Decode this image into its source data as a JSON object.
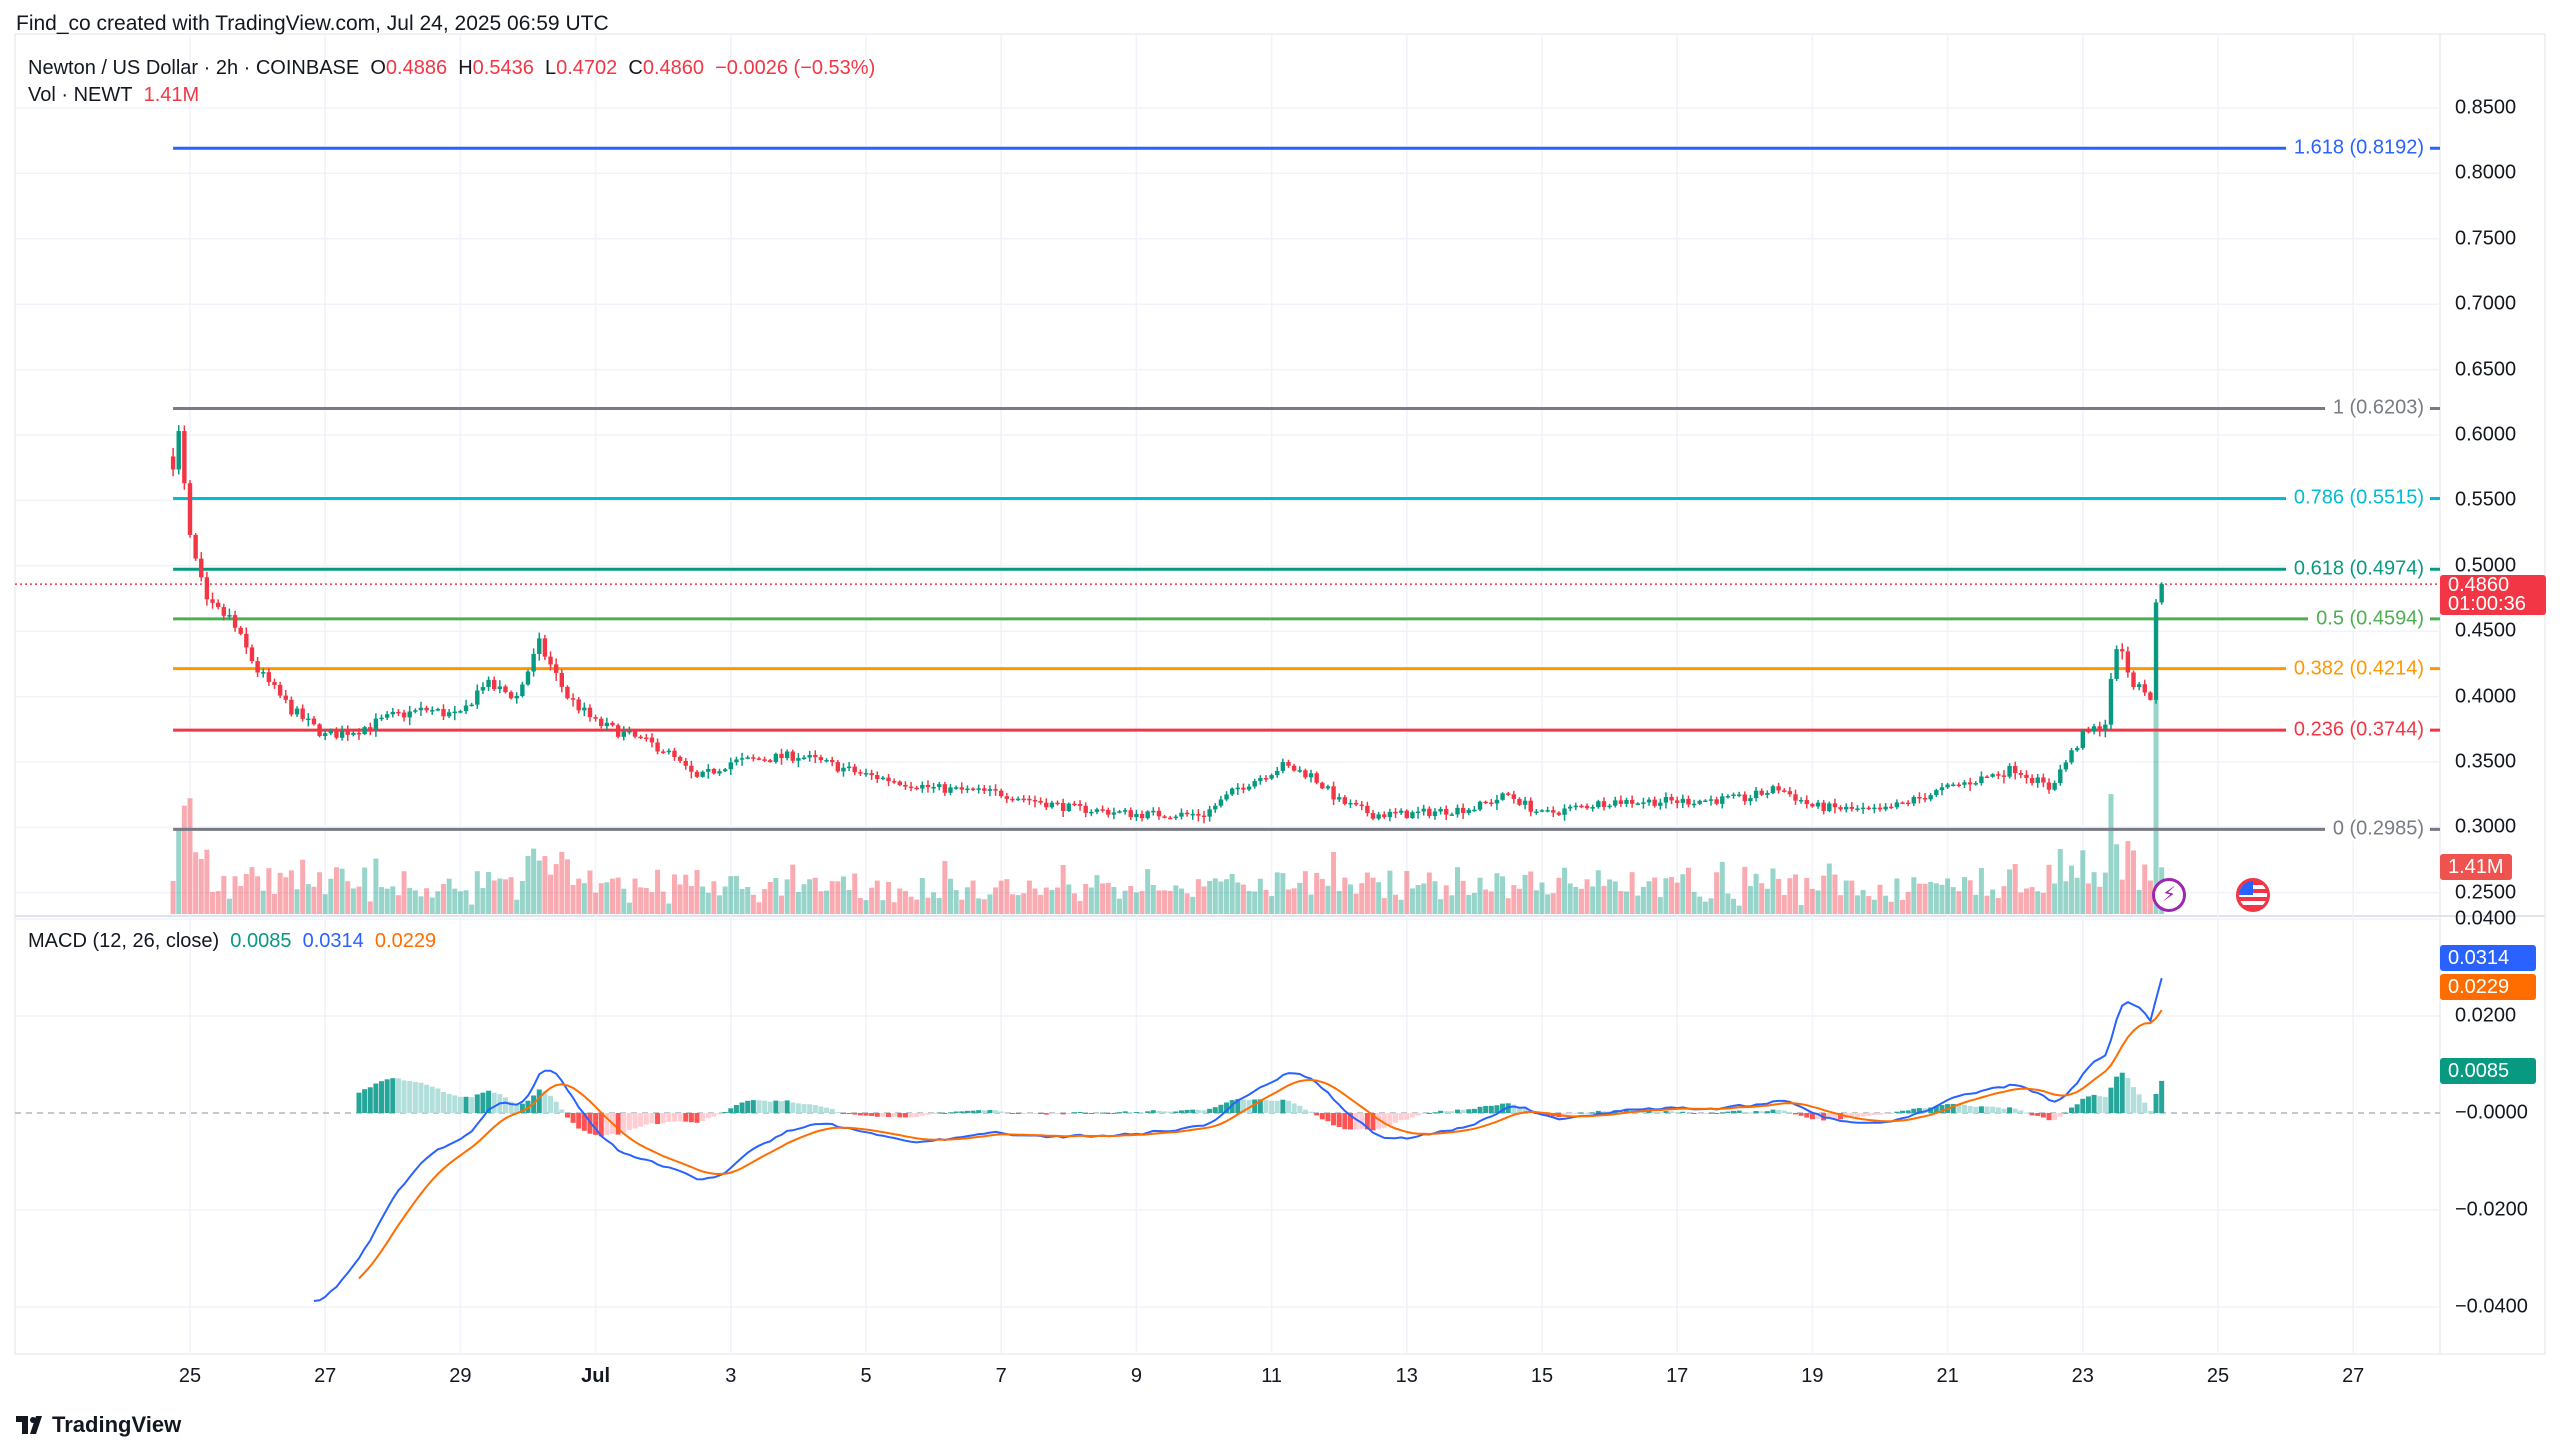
{
  "header": {
    "created": "Find_co created with TradingView.com, Jul 24, 2025 06:59 UTC"
  },
  "legend": {
    "symbol": "Newton / US Dollar · 2h · COINBASE",
    "o_label": "O",
    "o": "0.4886",
    "h_label": "H",
    "h": "0.5436",
    "l_label": "L",
    "l": "0.4702",
    "c_label": "C",
    "c": "0.4860",
    "change": "−0.0026 (−0.53%)",
    "vol_label": "Vol · NEWT",
    "vol": "1.41M"
  },
  "macd_legend": {
    "label": "MACD (12, 26, close)",
    "hist": "0.0085",
    "macd": "0.0314",
    "signal": "0.0229"
  },
  "price_box": {
    "price": "0.4860",
    "countdown": "01:00:36"
  },
  "volume_box": "1.41M",
  "macd_boxes": {
    "macd": "0.0314",
    "signal": "0.0229",
    "hist": "0.0085"
  },
  "brand": "TradingView",
  "colors": {
    "up": "#089981",
    "down": "#F23645",
    "macd": "#2962FF",
    "signal": "#FF6D00",
    "grid": "#F0F3FA"
  },
  "icons": [
    "lightning-event-icon",
    "us-flag-event-icon",
    "tradingview-logo-icon"
  ],
  "chart_data": {
    "type": "candlestick",
    "interval": "2h",
    "price_axis": {
      "ticks": [
        "0.8500",
        "0.8000",
        "0.7500",
        "0.7000",
        "0.6500",
        "0.6000",
        "0.5500",
        "0.5000",
        "0.4500",
        "0.4000",
        "0.3500",
        "0.3000",
        "0.2500"
      ],
      "range": [
        0.24,
        0.86
      ]
    },
    "macd_axis": {
      "ticks": [
        "0.0400",
        "0.0200",
        "−0.0000",
        "−0.0200",
        "−0.0400"
      ],
      "range": [
        -0.045,
        0.04
      ]
    },
    "x_ticks": [
      {
        "label": "25",
        "date": "2025-06-25"
      },
      {
        "label": "27",
        "date": "2025-06-27"
      },
      {
        "label": "29",
        "date": "2025-06-29"
      },
      {
        "label": "Jul",
        "date": "2025-07-01"
      },
      {
        "label": "3",
        "date": "2025-07-03"
      },
      {
        "label": "5",
        "date": "2025-07-05"
      },
      {
        "label": "7",
        "date": "2025-07-07"
      },
      {
        "label": "9",
        "date": "2025-07-09"
      },
      {
        "label": "11",
        "date": "2025-07-11"
      },
      {
        "label": "13",
        "date": "2025-07-13"
      },
      {
        "label": "15",
        "date": "2025-07-15"
      },
      {
        "label": "17",
        "date": "2025-07-17"
      },
      {
        "label": "19",
        "date": "2025-07-19"
      },
      {
        "label": "21",
        "date": "2025-07-21"
      },
      {
        "label": "23",
        "date": "2025-07-23"
      },
      {
        "label": "25",
        "date": "2025-07-25"
      },
      {
        "label": "27",
        "date": "2025-07-27"
      }
    ],
    "fib_levels": [
      {
        "label": "1.618 (0.8192)",
        "price": 0.8192,
        "color": "#2962FF"
      },
      {
        "label": "1 (0.6203)",
        "price": 0.6203,
        "color": "#787B86"
      },
      {
        "label": "0.786 (0.5515)",
        "price": 0.5515,
        "color": "#00BCD4"
      },
      {
        "label": "0.618 (0.4974)",
        "price": 0.4974,
        "color": "#089981"
      },
      {
        "label": "0.5 (0.4594)",
        "price": 0.4594,
        "color": "#4CAF50"
      },
      {
        "label": "0.382 (0.4214)",
        "price": 0.4214,
        "color": "#FF9800"
      },
      {
        "label": "0.236 (0.3744)",
        "price": 0.3744,
        "color": "#F23645"
      },
      {
        "label": "0 (0.2985)",
        "price": 0.2985,
        "color": "#787B86"
      }
    ],
    "fib_start": "2025-06-24T18:00",
    "last_price": 0.486,
    "close_path": [
      [
        "2025-06-24T18:00",
        0.58
      ],
      [
        "2025-06-24T20:00",
        0.6
      ],
      [
        "2025-06-25T00:00",
        0.52
      ],
      [
        "2025-06-25T06:00",
        0.47
      ],
      [
        "2025-06-25T14:00",
        0.46
      ],
      [
        "2025-06-26T00:00",
        0.42
      ],
      [
        "2025-06-26T12:00",
        0.39
      ],
      [
        "2025-06-27T00:00",
        0.37
      ],
      [
        "2025-06-27T12:00",
        0.375
      ],
      [
        "2025-06-28T00:00",
        0.385
      ],
      [
        "2025-06-28T12:00",
        0.39
      ],
      [
        "2025-06-29T00:00",
        0.385
      ],
      [
        "2025-06-29T08:00",
        0.41
      ],
      [
        "2025-06-29T20:00",
        0.4
      ],
      [
        "2025-06-30T04:00",
        0.44
      ],
      [
        "2025-06-30T14:00",
        0.4
      ],
      [
        "2025-07-01T00:00",
        0.38
      ],
      [
        "2025-07-01T12:00",
        0.37
      ],
      [
        "2025-07-02T00:00",
        0.36
      ],
      [
        "2025-07-02T12:00",
        0.337
      ],
      [
        "2025-07-03T00:00",
        0.35
      ],
      [
        "2025-07-04T00:00",
        0.355
      ],
      [
        "2025-07-05T00:00",
        0.34
      ],
      [
        "2025-07-06T00:00",
        0.33
      ],
      [
        "2025-07-07T00:00",
        0.326
      ],
      [
        "2025-07-08T00:00",
        0.315
      ],
      [
        "2025-07-09T00:00",
        0.31
      ],
      [
        "2025-07-10T00:00",
        0.31
      ],
      [
        "2025-07-10T12:00",
        0.33
      ],
      [
        "2025-07-11T04:00",
        0.347
      ],
      [
        "2025-07-11T14:00",
        0.34
      ],
      [
        "2025-07-12T00:00",
        0.32
      ],
      [
        "2025-07-12T12:00",
        0.31
      ],
      [
        "2025-07-13T00:00",
        0.31
      ],
      [
        "2025-07-14T00:00",
        0.315
      ],
      [
        "2025-07-14T12:00",
        0.325
      ],
      [
        "2025-07-15T00:00",
        0.31
      ],
      [
        "2025-07-16T00:00",
        0.32
      ],
      [
        "2025-07-17T00:00",
        0.32
      ],
      [
        "2025-07-18T00:00",
        0.322
      ],
      [
        "2025-07-18T12:00",
        0.33
      ],
      [
        "2025-07-19T00:00",
        0.316
      ],
      [
        "2025-07-20T00:00",
        0.312
      ],
      [
        "2025-07-21T00:00",
        0.33
      ],
      [
        "2025-07-22T00:00",
        0.345
      ],
      [
        "2025-07-22T12:00",
        0.33
      ],
      [
        "2025-07-23T00:00",
        0.37
      ],
      [
        "2025-07-23T08:00",
        0.38
      ],
      [
        "2025-07-23T12:00",
        0.44
      ],
      [
        "2025-07-23T18:00",
        0.41
      ],
      [
        "2025-07-24T00:00",
        0.4
      ],
      [
        "2025-07-24T02:00",
        0.47
      ],
      [
        "2025-07-24T04:00",
        0.486
      ]
    ]
  }
}
